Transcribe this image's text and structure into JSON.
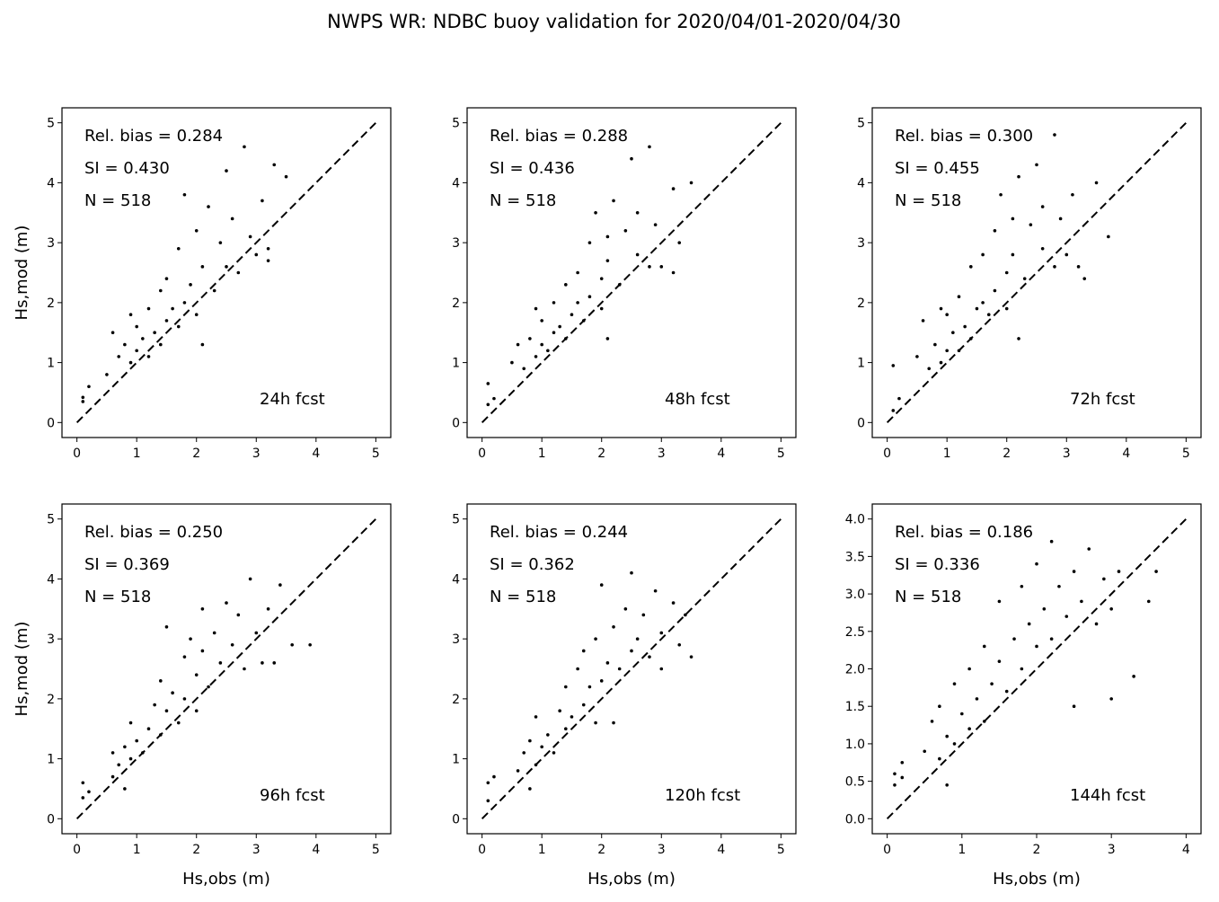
{
  "chart_data": {
    "type": "scatter",
    "title": "NWPS WR: NDBC buoy validation for 2020/04/01-2020/04/30",
    "xlabel": "Hs,obs (m)",
    "ylabel": "Hs,mod (m)",
    "panels": [
      {
        "label": "24h fcst",
        "rel_bias_text": "Rel. bias =  0.284",
        "si_text": "SI =  0.430",
        "n_text": "N = 518",
        "xlim": [
          -0.25,
          5.25
        ],
        "ylim": [
          -0.25,
          5.25
        ],
        "xticks": [
          "0",
          "1",
          "2",
          "3",
          "4",
          "5"
        ],
        "yticks": [
          "0",
          "1",
          "2",
          "3",
          "4",
          "5"
        ],
        "xtick_values": [
          0,
          1,
          2,
          3,
          4,
          5
        ],
        "ytick_values": [
          0,
          1,
          2,
          3,
          4,
          5
        ],
        "points": [
          [
            0.1,
            0.35
          ],
          [
            0.1,
            0.42
          ],
          [
            0.2,
            0.6
          ],
          [
            0.5,
            0.8
          ],
          [
            0.6,
            1.5
          ],
          [
            0.7,
            1.1
          ],
          [
            0.8,
            1.3
          ],
          [
            0.9,
            1.0
          ],
          [
            0.9,
            1.8
          ],
          [
            1.0,
            1.2
          ],
          [
            1.0,
            1.6
          ],
          [
            1.1,
            1.4
          ],
          [
            1.2,
            1.1
          ],
          [
            1.2,
            1.9
          ],
          [
            1.3,
            1.5
          ],
          [
            1.4,
            1.3
          ],
          [
            1.4,
            2.2
          ],
          [
            1.5,
            1.7
          ],
          [
            1.5,
            2.4
          ],
          [
            1.6,
            1.9
          ],
          [
            1.7,
            1.6
          ],
          [
            1.7,
            2.9
          ],
          [
            1.8,
            2.0
          ],
          [
            1.8,
            3.8
          ],
          [
            1.9,
            2.3
          ],
          [
            2.0,
            1.8
          ],
          [
            2.0,
            3.2
          ],
          [
            2.1,
            2.6
          ],
          [
            2.1,
            1.3
          ],
          [
            2.2,
            3.6
          ],
          [
            2.3,
            2.2
          ],
          [
            2.4,
            3.0
          ],
          [
            2.5,
            4.2
          ],
          [
            2.5,
            2.6
          ],
          [
            2.6,
            3.4
          ],
          [
            2.7,
            2.5
          ],
          [
            2.8,
            4.6
          ],
          [
            2.9,
            3.1
          ],
          [
            3.0,
            2.8
          ],
          [
            3.1,
            3.7
          ],
          [
            3.2,
            2.7
          ],
          [
            3.3,
            4.3
          ],
          [
            3.5,
            4.1
          ],
          [
            3.2,
            2.9
          ]
        ]
      },
      {
        "label": "48h fcst",
        "rel_bias_text": "Rel. bias =  0.288",
        "si_text": "SI =  0.436",
        "n_text": "N = 518",
        "xlim": [
          -0.25,
          5.25
        ],
        "ylim": [
          -0.25,
          5.25
        ],
        "xticks": [
          "0",
          "1",
          "2",
          "3",
          "4",
          "5"
        ],
        "yticks": [
          "0",
          "1",
          "2",
          "3",
          "4",
          "5"
        ],
        "xtick_values": [
          0,
          1,
          2,
          3,
          4,
          5
        ],
        "ytick_values": [
          0,
          1,
          2,
          3,
          4,
          5
        ],
        "points": [
          [
            0.1,
            0.3
          ],
          [
            0.1,
            0.65
          ],
          [
            0.2,
            0.4
          ],
          [
            0.5,
            1.0
          ],
          [
            0.6,
            1.3
          ],
          [
            0.7,
            0.9
          ],
          [
            0.8,
            1.4
          ],
          [
            0.9,
            1.1
          ],
          [
            0.9,
            1.9
          ],
          [
            1.0,
            1.3
          ],
          [
            1.0,
            1.7
          ],
          [
            1.1,
            1.2
          ],
          [
            1.2,
            1.5
          ],
          [
            1.2,
            2.0
          ],
          [
            1.3,
            1.6
          ],
          [
            1.4,
            1.4
          ],
          [
            1.4,
            2.3
          ],
          [
            1.5,
            1.8
          ],
          [
            1.6,
            2.5
          ],
          [
            1.6,
            2.0
          ],
          [
            1.7,
            1.7
          ],
          [
            1.8,
            3.0
          ],
          [
            1.8,
            2.1
          ],
          [
            1.9,
            3.5
          ],
          [
            2.0,
            2.4
          ],
          [
            2.0,
            1.9
          ],
          [
            2.1,
            3.1
          ],
          [
            2.1,
            2.7
          ],
          [
            2.1,
            1.4
          ],
          [
            2.2,
            3.7
          ],
          [
            2.3,
            2.3
          ],
          [
            2.4,
            3.2
          ],
          [
            2.5,
            4.4
          ],
          [
            2.6,
            2.8
          ],
          [
            2.6,
            3.5
          ],
          [
            2.8,
            2.6
          ],
          [
            2.8,
            4.6
          ],
          [
            2.9,
            3.3
          ],
          [
            3.0,
            2.6
          ],
          [
            3.2,
            3.9
          ],
          [
            3.2,
            2.5
          ],
          [
            3.5,
            4.0
          ],
          [
            3.3,
            3.0
          ]
        ]
      },
      {
        "label": "72h fcst",
        "rel_bias_text": "Rel. bias =  0.300",
        "si_text": "SI =  0.455",
        "n_text": "N = 518",
        "xlim": [
          -0.25,
          5.25
        ],
        "ylim": [
          -0.25,
          5.25
        ],
        "xticks": [
          "0",
          "1",
          "2",
          "3",
          "4",
          "5"
        ],
        "yticks": [
          "0",
          "1",
          "2",
          "3",
          "4",
          "5"
        ],
        "xtick_values": [
          0,
          1,
          2,
          3,
          4,
          5
        ],
        "ytick_values": [
          0,
          1,
          2,
          3,
          4,
          5
        ],
        "points": [
          [
            0.1,
            0.2
          ],
          [
            0.1,
            0.95
          ],
          [
            0.2,
            0.4
          ],
          [
            0.5,
            1.1
          ],
          [
            0.6,
            1.7
          ],
          [
            0.7,
            0.9
          ],
          [
            0.8,
            1.3
          ],
          [
            0.9,
            1.0
          ],
          [
            0.9,
            1.9
          ],
          [
            1.0,
            1.2
          ],
          [
            1.0,
            1.8
          ],
          [
            1.1,
            1.5
          ],
          [
            1.2,
            1.2
          ],
          [
            1.2,
            2.1
          ],
          [
            1.3,
            1.6
          ],
          [
            1.4,
            1.4
          ],
          [
            1.4,
            2.6
          ],
          [
            1.5,
            1.9
          ],
          [
            1.6,
            2.8
          ],
          [
            1.6,
            2.0
          ],
          [
            1.7,
            1.8
          ],
          [
            1.8,
            3.2
          ],
          [
            1.8,
            2.2
          ],
          [
            1.9,
            3.8
          ],
          [
            2.0,
            2.5
          ],
          [
            2.0,
            1.9
          ],
          [
            2.1,
            3.4
          ],
          [
            2.1,
            2.8
          ],
          [
            2.2,
            1.4
          ],
          [
            2.2,
            4.1
          ],
          [
            2.3,
            2.4
          ],
          [
            2.4,
            3.3
          ],
          [
            2.5,
            4.3
          ],
          [
            2.6,
            2.9
          ],
          [
            2.6,
            3.6
          ],
          [
            2.8,
            2.6
          ],
          [
            2.8,
            4.8
          ],
          [
            2.9,
            3.4
          ],
          [
            3.0,
            2.8
          ],
          [
            3.1,
            3.8
          ],
          [
            3.2,
            2.6
          ],
          [
            3.7,
            3.1
          ],
          [
            3.5,
            4.0
          ],
          [
            3.3,
            2.4
          ]
        ]
      },
      {
        "label": "96h fcst",
        "rel_bias_text": "Rel. bias =  0.250",
        "si_text": "SI =  0.369",
        "n_text": "N = 518",
        "xlim": [
          -0.25,
          5.25
        ],
        "ylim": [
          -0.25,
          5.25
        ],
        "xticks": [
          "0",
          "1",
          "2",
          "3",
          "4",
          "5"
        ],
        "yticks": [
          "0",
          "1",
          "2",
          "3",
          "4",
          "5"
        ],
        "xtick_values": [
          0,
          1,
          2,
          3,
          4,
          5
        ],
        "ytick_values": [
          0,
          1,
          2,
          3,
          4,
          5
        ],
        "points": [
          [
            0.1,
            0.35
          ],
          [
            0.1,
            0.6
          ],
          [
            0.2,
            0.45
          ],
          [
            0.6,
            0.7
          ],
          [
            0.6,
            1.1
          ],
          [
            0.7,
            0.9
          ],
          [
            0.8,
            0.5
          ],
          [
            0.8,
            1.2
          ],
          [
            0.9,
            1.0
          ],
          [
            0.9,
            1.6
          ],
          [
            1.0,
            1.3
          ],
          [
            1.1,
            1.1
          ],
          [
            1.2,
            1.5
          ],
          [
            1.3,
            1.9
          ],
          [
            1.4,
            1.4
          ],
          [
            1.4,
            2.3
          ],
          [
            1.5,
            3.2
          ],
          [
            1.5,
            1.8
          ],
          [
            1.6,
            2.1
          ],
          [
            1.7,
            1.6
          ],
          [
            1.8,
            2.7
          ],
          [
            1.8,
            2.0
          ],
          [
            1.9,
            3.0
          ],
          [
            2.0,
            2.4
          ],
          [
            2.0,
            1.8
          ],
          [
            2.1,
            3.5
          ],
          [
            2.1,
            2.8
          ],
          [
            2.2,
            2.2
          ],
          [
            2.3,
            3.1
          ],
          [
            2.4,
            2.6
          ],
          [
            2.5,
            3.6
          ],
          [
            2.6,
            2.9
          ],
          [
            2.7,
            3.4
          ],
          [
            2.8,
            2.5
          ],
          [
            2.9,
            4.0
          ],
          [
            3.0,
            3.1
          ],
          [
            3.1,
            2.6
          ],
          [
            3.2,
            3.5
          ],
          [
            3.4,
            3.9
          ],
          [
            3.6,
            2.9
          ],
          [
            3.9,
            2.9
          ],
          [
            3.3,
            2.6
          ]
        ]
      },
      {
        "label": "120h fcst",
        "rel_bias_text": "Rel. bias =  0.244",
        "si_text": "SI =  0.362",
        "n_text": "N = 518",
        "xlim": [
          -0.25,
          5.25
        ],
        "ylim": [
          -0.25,
          5.25
        ],
        "xticks": [
          "0",
          "1",
          "2",
          "3",
          "4",
          "5"
        ],
        "yticks": [
          "0",
          "1",
          "2",
          "3",
          "4",
          "5"
        ],
        "xtick_values": [
          0,
          1,
          2,
          3,
          4,
          5
        ],
        "ytick_values": [
          0,
          1,
          2,
          3,
          4,
          5
        ],
        "points": [
          [
            0.1,
            0.3
          ],
          [
            0.1,
            0.6
          ],
          [
            0.2,
            0.7
          ],
          [
            0.6,
            0.8
          ],
          [
            0.7,
            1.1
          ],
          [
            0.8,
            0.5
          ],
          [
            0.8,
            1.3
          ],
          [
            0.9,
            0.9
          ],
          [
            0.9,
            1.7
          ],
          [
            1.0,
            1.2
          ],
          [
            1.1,
            1.4
          ],
          [
            1.2,
            1.1
          ],
          [
            1.3,
            1.8
          ],
          [
            1.4,
            1.5
          ],
          [
            1.4,
            2.2
          ],
          [
            1.5,
            1.7
          ],
          [
            1.6,
            2.5
          ],
          [
            1.7,
            1.9
          ],
          [
            1.7,
            2.8
          ],
          [
            1.8,
            2.2
          ],
          [
            1.9,
            1.6
          ],
          [
            1.9,
            3.0
          ],
          [
            2.0,
            2.3
          ],
          [
            2.0,
            3.9
          ],
          [
            2.1,
            2.6
          ],
          [
            2.2,
            1.6
          ],
          [
            2.2,
            3.2
          ],
          [
            2.3,
            2.5
          ],
          [
            2.4,
            3.5
          ],
          [
            2.5,
            2.8
          ],
          [
            2.5,
            4.1
          ],
          [
            2.6,
            3.0
          ],
          [
            2.7,
            3.4
          ],
          [
            2.8,
            2.7
          ],
          [
            2.9,
            3.8
          ],
          [
            3.0,
            3.1
          ],
          [
            3.0,
            2.5
          ],
          [
            3.2,
            3.6
          ],
          [
            3.3,
            2.9
          ],
          [
            3.5,
            2.7
          ],
          [
            3.4,
            3.4
          ]
        ]
      },
      {
        "label": "144h fcst",
        "rel_bias_text": "Rel. bias =  0.186",
        "si_text": "SI =  0.336",
        "n_text": "N = 518",
        "xlim": [
          -0.2,
          4.2
        ],
        "ylim": [
          -0.2,
          4.2
        ],
        "xticks": [
          "0",
          "1",
          "2",
          "3",
          "4"
        ],
        "yticks": [
          "0.0",
          "0.5",
          "1.0",
          "1.5",
          "2.0",
          "2.5",
          "3.0",
          "3.5",
          "4.0"
        ],
        "xtick_values": [
          0,
          1,
          2,
          3,
          4
        ],
        "ytick_values": [
          0,
          0.5,
          1,
          1.5,
          2,
          2.5,
          3,
          3.5,
          4
        ],
        "points": [
          [
            0.1,
            0.45
          ],
          [
            0.1,
            0.6
          ],
          [
            0.2,
            0.55
          ],
          [
            0.2,
            0.75
          ],
          [
            0.5,
            0.9
          ],
          [
            0.6,
            1.3
          ],
          [
            0.7,
            0.8
          ],
          [
            0.7,
            1.5
          ],
          [
            0.8,
            0.45
          ],
          [
            0.8,
            1.1
          ],
          [
            0.9,
            1.0
          ],
          [
            0.9,
            1.8
          ],
          [
            1.0,
            1.4
          ],
          [
            1.1,
            1.2
          ],
          [
            1.1,
            2.0
          ],
          [
            1.2,
            1.6
          ],
          [
            1.3,
            1.3
          ],
          [
            1.3,
            2.3
          ],
          [
            1.4,
            1.8
          ],
          [
            1.5,
            2.1
          ],
          [
            1.5,
            2.9
          ],
          [
            1.6,
            1.7
          ],
          [
            1.7,
            2.4
          ],
          [
            1.8,
            2.0
          ],
          [
            1.8,
            3.1
          ],
          [
            1.9,
            2.6
          ],
          [
            2.0,
            2.3
          ],
          [
            2.0,
            3.4
          ],
          [
            2.1,
            2.8
          ],
          [
            2.2,
            2.4
          ],
          [
            2.2,
            3.7
          ],
          [
            2.3,
            3.1
          ],
          [
            2.4,
            2.7
          ],
          [
            2.5,
            3.3
          ],
          [
            2.5,
            1.5
          ],
          [
            2.6,
            2.9
          ],
          [
            2.7,
            3.6
          ],
          [
            2.8,
            2.6
          ],
          [
            2.9,
            3.2
          ],
          [
            3.0,
            1.6
          ],
          [
            3.0,
            2.8
          ],
          [
            3.1,
            3.3
          ],
          [
            3.3,
            1.9
          ],
          [
            3.5,
            2.9
          ],
          [
            3.6,
            3.3
          ]
        ]
      }
    ]
  }
}
